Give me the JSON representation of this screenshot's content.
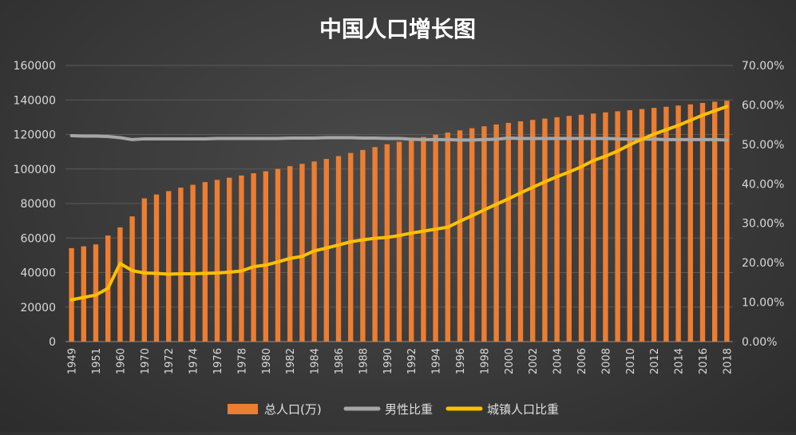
{
  "chart_data": {
    "type": "bar",
    "title": "中国人口增长图",
    "categories": [
      "1949",
      "1950",
      "1951",
      "1952",
      "1960",
      "1965",
      "1970",
      "1971",
      "1972",
      "1973",
      "1974",
      "1975",
      "1976",
      "1977",
      "1978",
      "1979",
      "1980",
      "1981",
      "1982",
      "1983",
      "1984",
      "1985",
      "1986",
      "1987",
      "1988",
      "1989",
      "1990",
      "1991",
      "1992",
      "1993",
      "1994",
      "1995",
      "1996",
      "1997",
      "1998",
      "1999",
      "2000",
      "2001",
      "2002",
      "2003",
      "2004",
      "2005",
      "2006",
      "2007",
      "2008",
      "2009",
      "2010",
      "2011",
      "2012",
      "2013",
      "2014",
      "2015",
      "2016",
      "2017",
      "2018"
    ],
    "x_tick_labels": [
      "1949",
      "1951",
      "1960",
      "1970",
      "1972",
      "1974",
      "1976",
      "1978",
      "1980",
      "1982",
      "1984",
      "1986",
      "1988",
      "1990",
      "1992",
      "1994",
      "1996",
      "1998",
      "2000",
      "2002",
      "2004",
      "2006",
      "2008",
      "2010",
      "2012",
      "2014",
      "2016",
      "2018"
    ],
    "series": [
      {
        "name": "总人口(万)",
        "type": "bar",
        "axis": "left",
        "color": "#ED7D31",
        "values": [
          54167,
          55196,
          56300,
          61482,
          66207,
          72538,
          82992,
          85229,
          87177,
          89211,
          90859,
          92420,
          93717,
          94974,
          96259,
          97542,
          98705,
          100072,
          101654,
          103008,
          104357,
          105851,
          107507,
          109300,
          111026,
          112704,
          114333,
          115823,
          117171,
          118517,
          119850,
          121121,
          122389,
          123626,
          124761,
          125786,
          126743,
          127627,
          128453,
          129227,
          129988,
          130756,
          131448,
          132129,
          132802,
          133450,
          134091,
          134735,
          135404,
          136072,
          136782,
          137462,
          138271,
          139008,
          139538
        ]
      },
      {
        "name": "男性比重",
        "type": "line",
        "axis": "right",
        "color": "#A6A6A6",
        "values": [
          52.2,
          52.1,
          52.1,
          52.0,
          51.7,
          51.2,
          51.4,
          51.4,
          51.4,
          51.4,
          51.4,
          51.4,
          51.5,
          51.5,
          51.5,
          51.5,
          51.5,
          51.5,
          51.6,
          51.6,
          51.6,
          51.7,
          51.7,
          51.7,
          51.6,
          51.6,
          51.5,
          51.5,
          51.3,
          51.2,
          51.2,
          51.2,
          51.1,
          51.1,
          51.2,
          51.3,
          51.6,
          51.5,
          51.5,
          51.5,
          51.5,
          51.5,
          51.5,
          51.5,
          51.5,
          51.4,
          51.3,
          51.3,
          51.3,
          51.2,
          51.2,
          51.2,
          51.2,
          51.2,
          51.1
        ]
      },
      {
        "name": "城镇人口比重",
        "type": "line",
        "axis": "right",
        "color": "#FFC000",
        "values": [
          10.6,
          11.2,
          11.8,
          13.5,
          19.8,
          18.0,
          17.4,
          17.3,
          17.1,
          17.2,
          17.2,
          17.3,
          17.4,
          17.6,
          17.9,
          19.0,
          19.4,
          20.2,
          21.1,
          21.6,
          23.0,
          23.7,
          24.5,
          25.3,
          25.8,
          26.2,
          26.4,
          26.9,
          27.5,
          28.0,
          28.5,
          29.0,
          30.5,
          31.9,
          33.4,
          34.8,
          36.2,
          37.7,
          39.1,
          40.5,
          41.8,
          43.0,
          44.3,
          45.9,
          47.0,
          48.3,
          49.9,
          51.3,
          52.6,
          53.7,
          54.8,
          56.1,
          57.4,
          58.5,
          59.6
        ]
      }
    ],
    "y_left": {
      "min": 0,
      "max": 160000,
      "ticks": [
        "0",
        "20000",
        "40000",
        "60000",
        "80000",
        "100000",
        "120000",
        "140000",
        "160000"
      ]
    },
    "y_right": {
      "min": 0,
      "max": 70,
      "ticks": [
        "0.00%",
        "10.00%",
        "20.00%",
        "30.00%",
        "40.00%",
        "50.00%",
        "60.00%",
        "70.00%"
      ]
    },
    "grid": true,
    "legend_position": "bottom"
  }
}
